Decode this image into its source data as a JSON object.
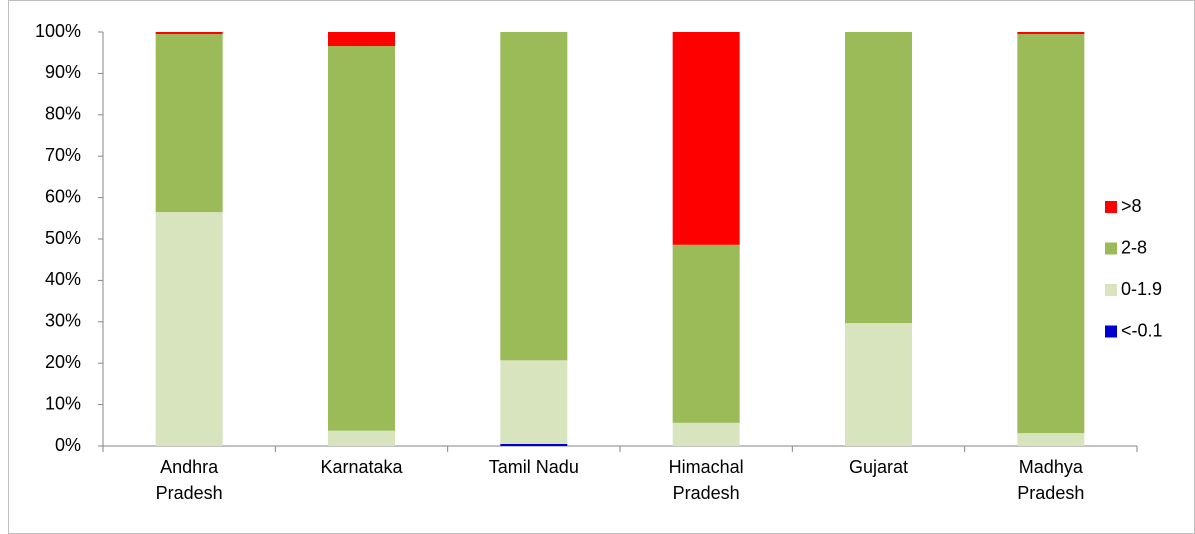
{
  "chart_data": {
    "type": "stacked-bar-100",
    "categories": [
      "Andhra Pradesh",
      "Karnataka",
      "Tamil Nadu",
      "Himachal Pradesh",
      "Gujarat",
      "Madhya Pradesh"
    ],
    "series": [
      {
        "name": "<-0.1",
        "color": "#0000cc",
        "values": [
          0,
          0,
          0.5,
          0,
          0,
          0
        ]
      },
      {
        "name": "0-1.9",
        "color": "#d7e4bd",
        "values": [
          56.5,
          3.7,
          20.2,
          5.6,
          29.7,
          3.1
        ]
      },
      {
        "name": "2-8",
        "color": "#9bbb59",
        "values": [
          43.0,
          92.9,
          79.3,
          43.0,
          70.3,
          96.4
        ]
      },
      {
        "name": ">8",
        "color": "#ff0000",
        "values": [
          0.5,
          3.4,
          0,
          51.4,
          0,
          0.5
        ]
      }
    ],
    "ylim": [
      0,
      100
    ],
    "yticks": [
      {
        "value": 0,
        "label": "0%"
      },
      {
        "value": 10,
        "label": "10%"
      },
      {
        "value": 20,
        "label": "20%"
      },
      {
        "value": 30,
        "label": "30%"
      },
      {
        "value": 40,
        "label": "40%"
      },
      {
        "value": 50,
        "label": "50%"
      },
      {
        "value": 60,
        "label": "60%"
      },
      {
        "value": 70,
        "label": "70%"
      },
      {
        "value": 80,
        "label": "80%"
      },
      {
        "value": 90,
        "label": "90%"
      },
      {
        "value": 100,
        "label": "100%"
      }
    ],
    "legend": "right"
  }
}
